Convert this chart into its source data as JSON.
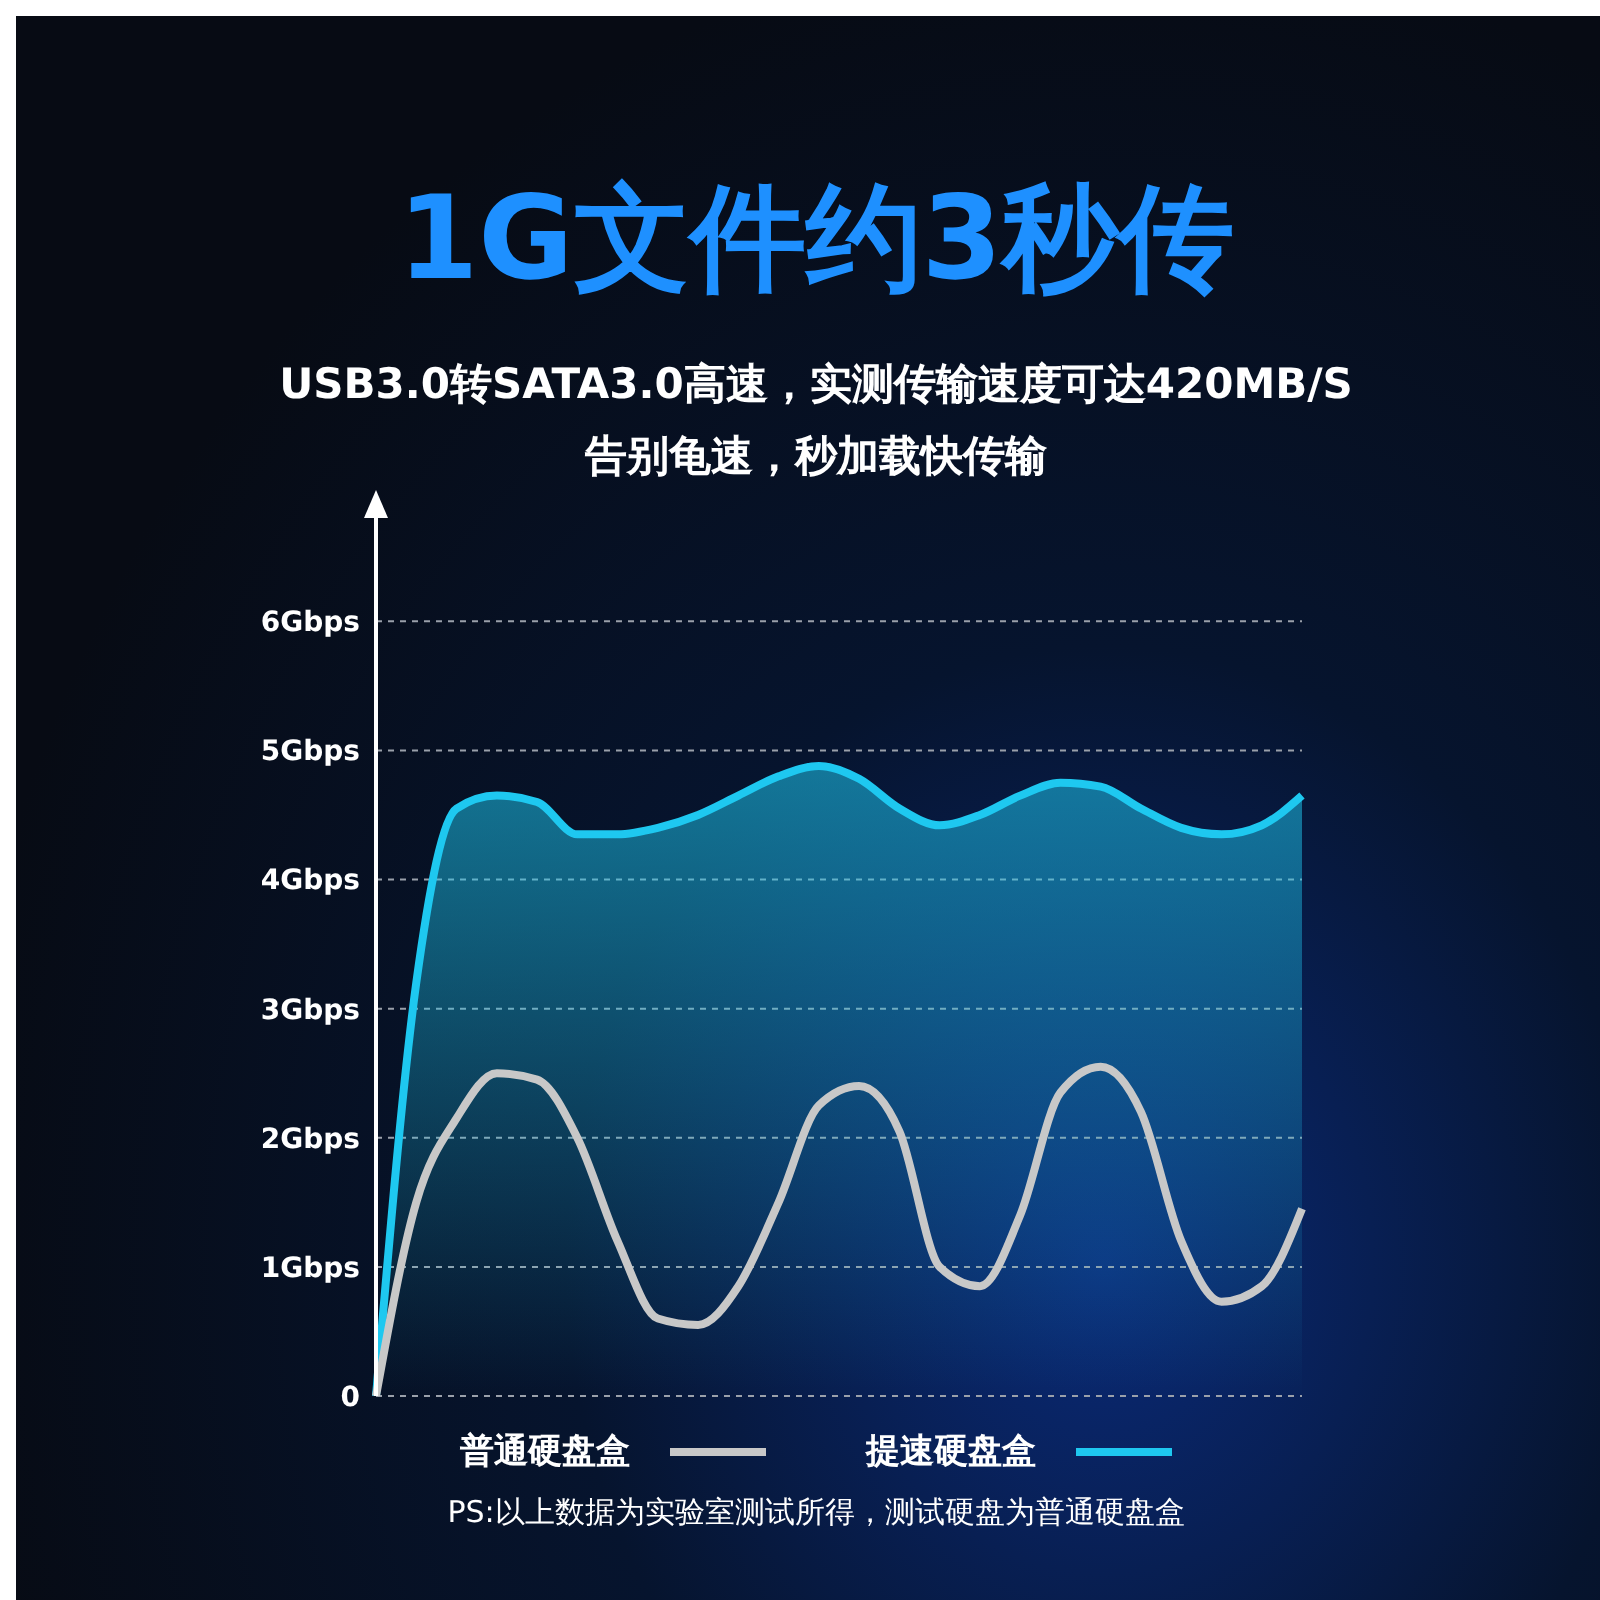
{
  "chart_data": {
    "type": "line",
    "title": "1G文件约3秒传",
    "subtitle": "USB3.0转SATA3.0高速，实测传输速度可达420MB/S\n告别龟速，秒加载快传输",
    "categories": [
      null,
      null,
      null,
      null,
      null,
      null,
      null,
      null,
      null,
      null,
      null,
      null,
      null,
      null,
      null,
      null,
      null,
      null,
      null,
      null,
      null,
      null,
      null,
      null
    ],
    "series": [
      {
        "name": "普通硬盘盒",
        "color": "#c8c8c8",
        "values": [
          0,
          1.5,
          2.15,
          2.5,
          2.45,
          2.0,
          1.2,
          0.6,
          0.55,
          0.85,
          1.5,
          2.25,
          2.4,
          2.05,
          1.0,
          0.85,
          1.4,
          2.35,
          2.55,
          2.2,
          1.2,
          0.73,
          0.85,
          1.45
        ]
      },
      {
        "name": "提速硬盘盒",
        "type": "area",
        "color": "#1ec8f0",
        "values": [
          0,
          3.2,
          4.55,
          4.65,
          4.6,
          4.35,
          4.35,
          4.4,
          4.5,
          4.65,
          4.8,
          4.88,
          4.78,
          4.55,
          4.42,
          4.5,
          4.65,
          4.75,
          4.72,
          4.55,
          4.4,
          4.35,
          4.42,
          4.65
        ]
      }
    ],
    "ylim": [
      0,
      6.8
    ],
    "yticks": [
      0,
      {
        "value": 1,
        "label": "1Gbps"
      },
      {
        "value": 2,
        "label": "2Gbps"
      },
      {
        "value": 3,
        "label": "3Gbps"
      },
      {
        "value": 4,
        "label": "4Gbps"
      },
      {
        "value": 5,
        "label": "5Gbps"
      },
      {
        "value": 6,
        "label": "6Gbps"
      }
    ],
    "grid": "y",
    "line_style": "solid",
    "marker": "none",
    "legend": "bottom",
    "tick_labels": "y",
    "annotations": [
      "PS:以上数据为实验室测试所得，测试硬盘为普通硬盘盒"
    ]
  }
}
